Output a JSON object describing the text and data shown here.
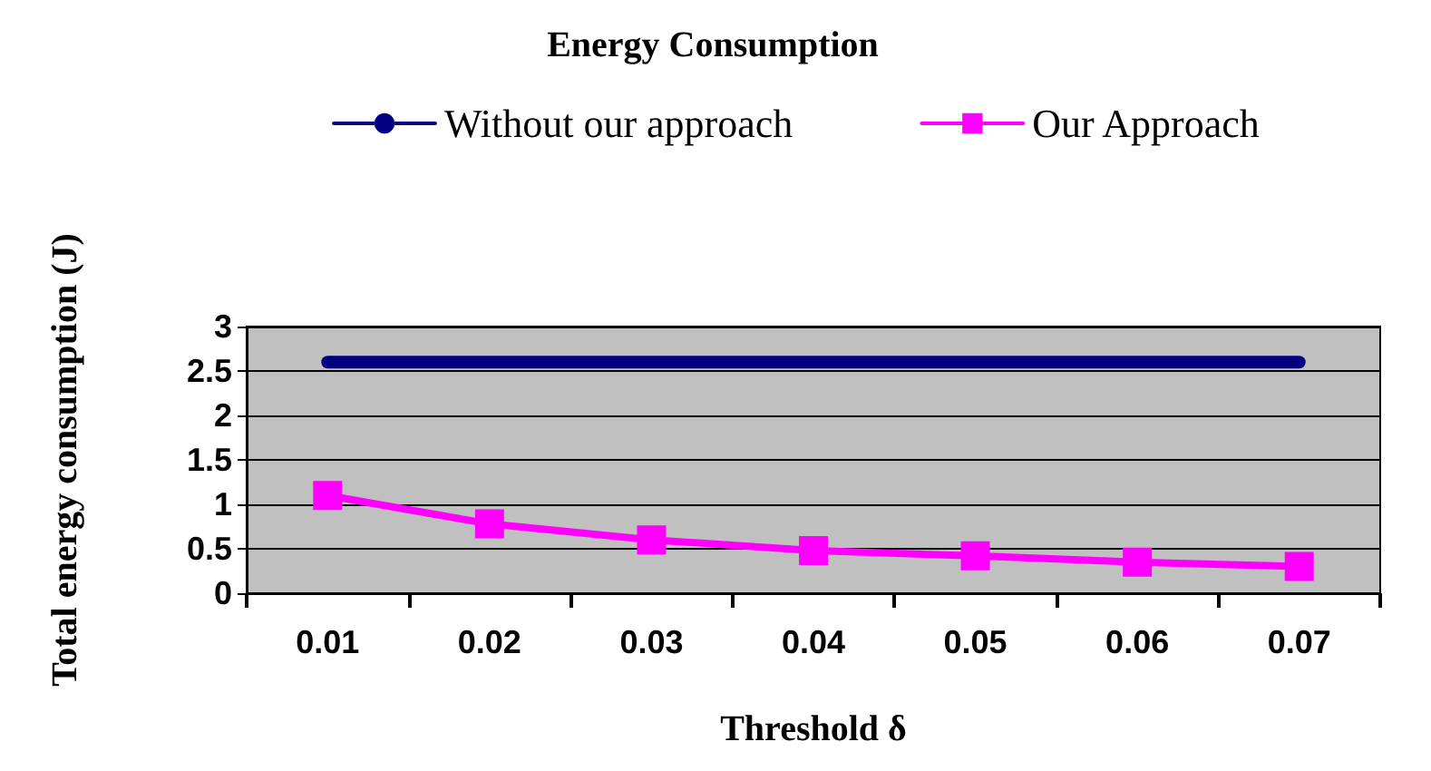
{
  "chart_data": {
    "type": "line",
    "title": "Energy Consumption",
    "xlabel": "Threshold δ",
    "ylabel": "Total energy consumption (J)",
    "categories": [
      "0.01",
      "0.02",
      "0.03",
      "0.04",
      "0.05",
      "0.06",
      "0.07"
    ],
    "series": [
      {
        "name": "Without our approach",
        "color": "#000080",
        "marker": "none",
        "values": [
          2.6,
          2.6,
          2.6,
          2.6,
          2.6,
          2.6,
          2.6
        ]
      },
      {
        "name": "Our Approach",
        "color": "#ff00ff",
        "marker": "square",
        "values": [
          1.1,
          0.78,
          0.6,
          0.48,
          0.42,
          0.35,
          0.3
        ]
      }
    ],
    "ylim": [
      0,
      3
    ],
    "yticks": [
      0,
      0.5,
      1,
      1.5,
      2,
      2.5,
      3
    ],
    "grid": "y",
    "legend": "top"
  }
}
